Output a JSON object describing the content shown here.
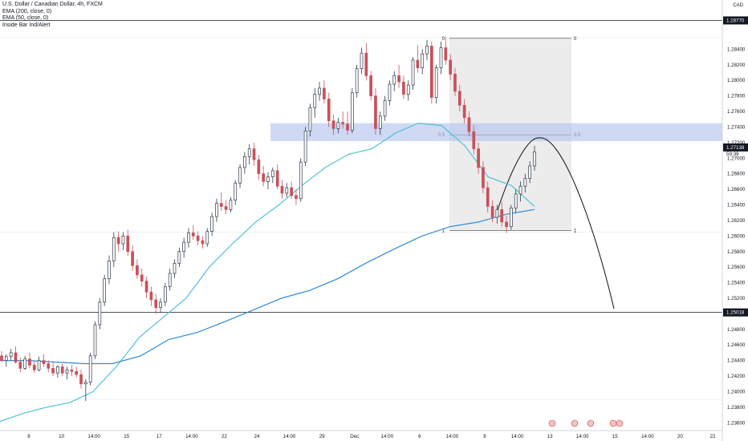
{
  "legend": {
    "symbol": "U.S. Dollar / Canadian Dollar, 4h, FXCM",
    "ema200": "EMA (200, close, 0)",
    "ema50": "EMA (50, close, 0)",
    "indicator": "Inside Bar Ind/Alert"
  },
  "currency": "CAD",
  "colors": {
    "up": "#2f3a4a",
    "down": "#c8515a",
    "ema50": "#4fc1d9",
    "ema200": "#2e8bd8",
    "zone": "#b6c4ee",
    "fib_box": "#e6e6e6"
  },
  "chart_data": {
    "type": "candlestick",
    "y_range": [
      1.235,
      1.2895
    ],
    "y_ticks": [
      "1.28400",
      "1.28200",
      "1.28000",
      "1.27800",
      "1.27600",
      "1.27400",
      "1.27200",
      "1.27000",
      "1.26800",
      "1.26600",
      "1.26400",
      "1.26200",
      "1.26000",
      "1.25800",
      "1.25600",
      "1.25400",
      "1.25200",
      "1.24800",
      "1.24600",
      "1.24400",
      "1.24200",
      "1.24000",
      "1.23800",
      "1.23600"
    ],
    "x_ticks": [
      "8",
      "10",
      "14:00",
      "15",
      "17",
      "14:00",
      "22",
      "24",
      "14:00",
      "29",
      "Dec",
      "14:00",
      "6",
      "14:00",
      "8",
      "14:00",
      "13",
      "14:00",
      "15",
      "14:00",
      "20",
      "22"
    ],
    "price_labels": [
      {
        "text": "1.28770",
        "value": 1.2877
      },
      {
        "text": "1.27138",
        "value": 1.27138
      },
      {
        "text": "1.25018",
        "value": 1.25018
      }
    ],
    "current_countdown": "59:39",
    "horizontal_lines": [
      1.2877,
      1.25018
    ],
    "resistance_zone": [
      1.2722,
      1.2745
    ],
    "fib_levels": [
      {
        "label": "0",
        "value": 1.2854
      },
      {
        "label": "0.5",
        "value": 1.273
      },
      {
        "label": "1",
        "value": 1.2607
      }
    ],
    "candles_ohlc": [
      [
        1.2446,
        1.2452,
        1.2438,
        1.244
      ],
      [
        1.244,
        1.2448,
        1.2432,
        1.2445
      ],
      [
        1.2445,
        1.2455,
        1.244,
        1.245
      ],
      [
        1.245,
        1.2458,
        1.2436,
        1.2438
      ],
      [
        1.2438,
        1.2444,
        1.2425,
        1.243
      ],
      [
        1.243,
        1.2446,
        1.2428,
        1.2442
      ],
      [
        1.2442,
        1.245,
        1.243,
        1.2434
      ],
      [
        1.2434,
        1.244,
        1.2424,
        1.2428
      ],
      [
        1.2428,
        1.2445,
        1.2426,
        1.244
      ],
      [
        1.244,
        1.2448,
        1.2432,
        1.2436
      ],
      [
        1.2436,
        1.244,
        1.2425,
        1.243
      ],
      [
        1.243,
        1.2438,
        1.242,
        1.2424
      ],
      [
        1.2424,
        1.2434,
        1.2418,
        1.2432
      ],
      [
        1.2432,
        1.2436,
        1.242,
        1.2424
      ],
      [
        1.2424,
        1.2432,
        1.2416,
        1.2428
      ],
      [
        1.2428,
        1.2434,
        1.242,
        1.2426
      ],
      [
        1.2426,
        1.2432,
        1.2418,
        1.2422
      ],
      [
        1.2422,
        1.2428,
        1.2404,
        1.241
      ],
      [
        1.241,
        1.2416,
        1.2388,
        1.2412
      ],
      [
        1.2412,
        1.245,
        1.2408,
        1.2446
      ],
      [
        1.2446,
        1.249,
        1.2442,
        1.2486
      ],
      [
        1.2486,
        1.252,
        1.248,
        1.2515
      ],
      [
        1.2515,
        1.255,
        1.251,
        1.2545
      ],
      [
        1.2545,
        1.2575,
        1.2538,
        1.2568
      ],
      [
        1.2568,
        1.2605,
        1.256,
        1.2598
      ],
      [
        1.2598,
        1.2606,
        1.258,
        1.259
      ],
      [
        1.259,
        1.2605,
        1.2582,
        1.26
      ],
      [
        1.26,
        1.2608,
        1.2575,
        1.258
      ],
      [
        1.258,
        1.2588,
        1.2555,
        1.2562
      ],
      [
        1.2562,
        1.257,
        1.2545,
        1.255
      ],
      [
        1.255,
        1.2558,
        1.2535,
        1.2542
      ],
      [
        1.2542,
        1.2548,
        1.252,
        1.2528
      ],
      [
        1.2528,
        1.2535,
        1.251,
        1.2518
      ],
      [
        1.2518,
        1.2526,
        1.25,
        1.2508
      ],
      [
        1.2508,
        1.252,
        1.2502,
        1.2515
      ],
      [
        1.2515,
        1.254,
        1.251,
        1.2535
      ],
      [
        1.2535,
        1.2558,
        1.253,
        1.2552
      ],
      [
        1.2552,
        1.257,
        1.2546,
        1.2565
      ],
      [
        1.2565,
        1.2585,
        1.256,
        1.258
      ],
      [
        1.258,
        1.2598,
        1.2572,
        1.2592
      ],
      [
        1.2592,
        1.261,
        1.2585,
        1.2604
      ],
      [
        1.2604,
        1.2614,
        1.2595,
        1.26
      ],
      [
        1.26,
        1.2606,
        1.2588,
        1.2594
      ],
      [
        1.2594,
        1.26,
        1.2584,
        1.259
      ],
      [
        1.259,
        1.261,
        1.2586,
        1.2606
      ],
      [
        1.2606,
        1.263,
        1.26,
        1.2625
      ],
      [
        1.2625,
        1.2648,
        1.2618,
        1.2642
      ],
      [
        1.2642,
        1.2656,
        1.2632,
        1.2638
      ],
      [
        1.2638,
        1.2646,
        1.2628,
        1.2634
      ],
      [
        1.2634,
        1.265,
        1.263,
        1.2646
      ],
      [
        1.2646,
        1.2672,
        1.264,
        1.2668
      ],
      [
        1.2668,
        1.2692,
        1.2662,
        1.2688
      ],
      [
        1.2688,
        1.2708,
        1.268,
        1.2702
      ],
      [
        1.2702,
        1.2718,
        1.2692,
        1.2712
      ],
      [
        1.2712,
        1.272,
        1.269,
        1.2698
      ],
      [
        1.2698,
        1.2704,
        1.2672,
        1.268
      ],
      [
        1.268,
        1.269,
        1.2664,
        1.267
      ],
      [
        1.267,
        1.2682,
        1.266,
        1.2676
      ],
      [
        1.2676,
        1.2688,
        1.2668,
        1.2684
      ],
      [
        1.2684,
        1.2692,
        1.266,
        1.2664
      ],
      [
        1.2664,
        1.2672,
        1.2648,
        1.2655
      ],
      [
        1.2655,
        1.2668,
        1.265,
        1.2662
      ],
      [
        1.2662,
        1.267,
        1.2648,
        1.2652
      ],
      [
        1.2652,
        1.266,
        1.264,
        1.2648
      ],
      [
        1.2648,
        1.27,
        1.2644,
        1.2695
      ],
      [
        1.2695,
        1.274,
        1.269,
        1.2735
      ],
      [
        1.2735,
        1.277,
        1.2728,
        1.2765
      ],
      [
        1.2765,
        1.279,
        1.2752,
        1.2782
      ],
      [
        1.2782,
        1.2798,
        1.2774,
        1.279
      ],
      [
        1.279,
        1.28,
        1.277,
        1.2776
      ],
      [
        1.2776,
        1.2784,
        1.274,
        1.2748
      ],
      [
        1.2748,
        1.2756,
        1.273,
        1.2738
      ],
      [
        1.2738,
        1.2752,
        1.2732,
        1.2746
      ],
      [
        1.2746,
        1.276,
        1.2738,
        1.2744
      ],
      [
        1.2744,
        1.276,
        1.273,
        1.2736
      ],
      [
        1.2736,
        1.279,
        1.2732,
        1.2784
      ],
      [
        1.2784,
        1.282,
        1.2778,
        1.2815
      ],
      [
        1.2815,
        1.2842,
        1.2808,
        1.2835
      ],
      [
        1.2835,
        1.2848,
        1.28,
        1.2806
      ],
      [
        1.2806,
        1.2812,
        1.2774,
        1.278
      ],
      [
        1.278,
        1.279,
        1.273,
        1.2738
      ],
      [
        1.2738,
        1.276,
        1.273,
        1.2754
      ],
      [
        1.2754,
        1.278,
        1.2748,
        1.2774
      ],
      [
        1.2774,
        1.28,
        1.2768,
        1.2795
      ],
      [
        1.2795,
        1.2812,
        1.2786,
        1.2806
      ],
      [
        1.2806,
        1.282,
        1.279,
        1.2798
      ],
      [
        1.2798,
        1.2806,
        1.2776,
        1.2782
      ],
      [
        1.2782,
        1.28,
        1.2774,
        1.2794
      ],
      [
        1.2794,
        1.283,
        1.2788,
        1.2826
      ],
      [
        1.2826,
        1.2845,
        1.281,
        1.2816
      ],
      [
        1.2816,
        1.284,
        1.2808,
        1.2834
      ],
      [
        1.2834,
        1.2852,
        1.2826,
        1.2844
      ],
      [
        1.2844,
        1.285,
        1.277,
        1.2778
      ],
      [
        1.2778,
        1.282,
        1.277,
        1.2816
      ],
      [
        1.2816,
        1.285,
        1.2808,
        1.2842
      ],
      [
        1.2842,
        1.2856,
        1.282,
        1.2826
      ],
      [
        1.2826,
        1.2834,
        1.28,
        1.2808
      ],
      [
        1.2808,
        1.2816,
        1.278,
        1.2786
      ],
      [
        1.2786,
        1.2794,
        1.276,
        1.2768
      ],
      [
        1.2768,
        1.2776,
        1.2745,
        1.2752
      ],
      [
        1.2752,
        1.276,
        1.2728,
        1.2734
      ],
      [
        1.2734,
        1.2742,
        1.2705,
        1.2712
      ],
      [
        1.2712,
        1.272,
        1.268,
        1.2688
      ],
      [
        1.2688,
        1.2696,
        1.2655,
        1.2662
      ],
      [
        1.2662,
        1.267,
        1.263,
        1.2638
      ],
      [
        1.2638,
        1.2646,
        1.2618,
        1.2624
      ],
      [
        1.2624,
        1.264,
        1.2616,
        1.2634
      ],
      [
        1.2634,
        1.2644,
        1.2612,
        1.2618
      ],
      [
        1.2618,
        1.2626,
        1.2604,
        1.2612
      ],
      [
        1.2612,
        1.264,
        1.2608,
        1.2636
      ],
      [
        1.2636,
        1.266,
        1.263,
        1.2654
      ],
      [
        1.2654,
        1.267,
        1.2644,
        1.2664
      ],
      [
        1.2664,
        1.268,
        1.2656,
        1.2674
      ],
      [
        1.2674,
        1.2696,
        1.2668,
        1.269
      ],
      [
        1.269,
        1.2716,
        1.2684,
        1.2708
      ]
    ],
    "ema50": [
      1.2362,
      1.2372,
      1.238,
      1.2386,
      1.24,
      1.2432,
      1.247,
      1.2495,
      1.252,
      1.256,
      1.259,
      1.2618,
      1.264,
      1.2665,
      1.2688,
      1.2705,
      1.2712,
      1.2732,
      1.2745,
      1.2742,
      1.2716,
      1.2676,
      1.2665,
      1.2638
    ],
    "ema200": [
      1.244,
      1.244,
      1.2438,
      1.2436,
      1.2436,
      1.2446,
      1.2467,
      1.2476,
      1.249,
      1.2505,
      1.252,
      1.253,
      1.2545,
      1.2565,
      1.2583,
      1.26,
      1.2612,
      1.2618,
      1.2628,
      1.2634
    ]
  }
}
